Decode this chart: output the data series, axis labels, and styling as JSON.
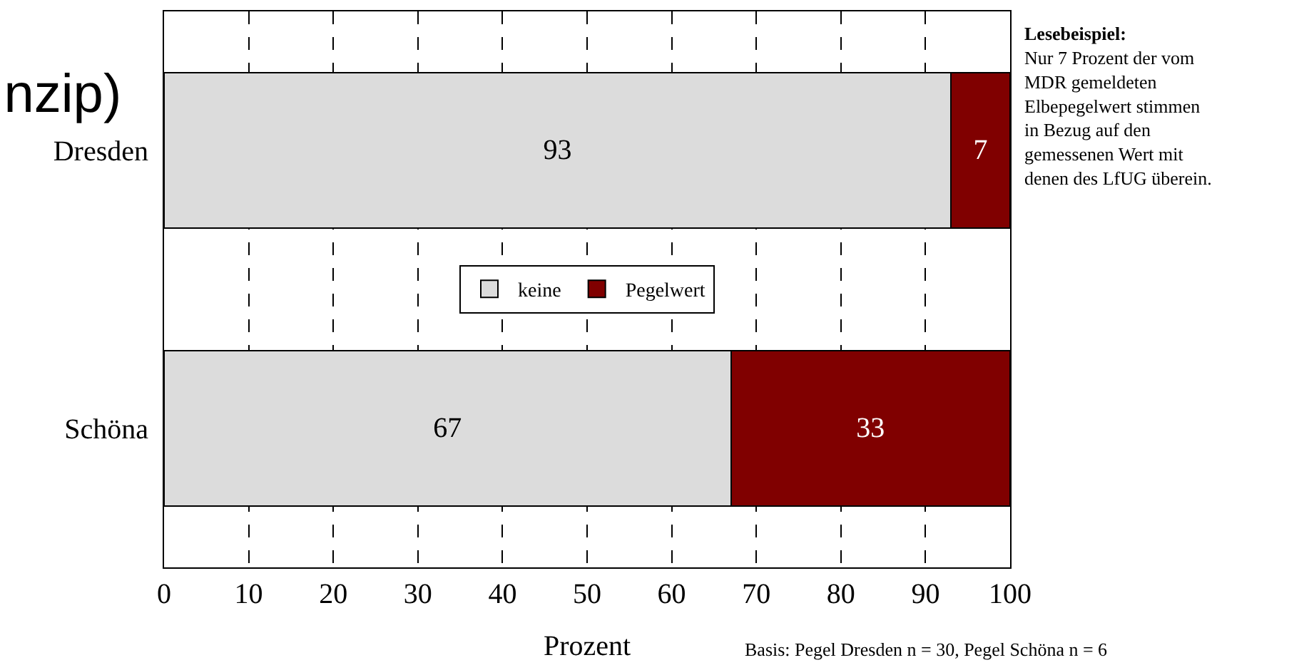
{
  "chart_data": {
    "type": "bar",
    "orientation": "horizontal",
    "stacked": true,
    "title": "nzip)",
    "xlabel": "Prozent",
    "categories": [
      "Dresden",
      "Schöna"
    ],
    "series": [
      {
        "name": "keine",
        "color": "#dcdcdc",
        "values": [
          93,
          67
        ]
      },
      {
        "name": "Pegelwert",
        "color": "#800000",
        "values": [
          7,
          33
        ]
      }
    ],
    "xlim": [
      0,
      100
    ],
    "xticks": [
      0,
      10,
      20,
      30,
      40,
      50,
      60,
      70,
      80,
      90,
      100
    ],
    "grid": "x",
    "legend": "center",
    "data_labels": true,
    "annotations": [
      "Lesebeispiel:",
      "Nur 7 Prozent der vom MDR gemeldeten Elbepegelwert stimmen in Bezug auf den gemessenen Wert mit denen des LfUG überein.",
      "Basis: Pegel Dresden n = 30, Pegel Schöna n = 6"
    ]
  }
}
